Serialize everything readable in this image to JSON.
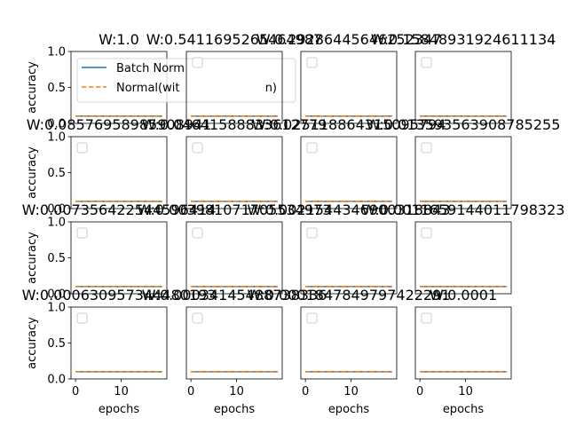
{
  "chart_data": {
    "type": "line",
    "grid": false,
    "ylim": [
      0,
      1.0
    ],
    "xlim": [
      -1,
      20
    ],
    "xticks": [
      0,
      10
    ],
    "yticks": [
      0.0,
      0.5,
      1.0
    ],
    "xticks_shown": [
      "0",
      "10"
    ],
    "yticks_shown": [
      "0.0",
      "0.5",
      "1.0"
    ],
    "xlabel": "epochs",
    "ylabel": "accuracy",
    "legend_location": "upper-left",
    "series_styles": [
      {
        "name": "Batch Normalization",
        "color": "#1f77b4",
        "dash": "solid"
      },
      {
        "name": "Normal(without BatchNorm)",
        "color": "#ff7f0e",
        "dash": "dashed"
      }
    ],
    "legend_labels_visible": [
      "Batch Norm",
      "Normal(wit",
      "n)"
    ],
    "panels": [
      {
        "title": "W:1.0",
        "legend": true,
        "x": [
          0,
          19
        ],
        "series": [
          {
            "name": "Batch Normalization",
            "values": [
              0.1,
              0.1
            ]
          },
          {
            "name": "Normal(without BatchNorm)",
            "values": [
              0.1,
              0.1
            ]
          }
        ]
      },
      {
        "title": "W:0.5411695265464987",
        "legend": false,
        "x": [
          0,
          19
        ],
        "series": [
          {
            "name": "Batch Normalization",
            "values": [
              0.1,
              0.1
            ]
          },
          {
            "name": "Normal(without BatchNorm)",
            "values": [
              0.1,
              0.1
            ]
          }
        ]
      },
      {
        "title": "W:0.29286445646252347",
        "legend": false,
        "x": [
          0,
          19
        ],
        "series": [
          {
            "name": "Batch Normalization",
            "values": [
              0.1,
              0.1
            ]
          },
          {
            "name": "Normal(without BatchNorm)",
            "values": [
              0.1,
              0.1
            ]
          }
        ]
      },
      {
        "title": "W:0.15848931924611134",
        "legend": false,
        "x": [
          0,
          19
        ],
        "series": [
          {
            "name": "Batch Normalization",
            "values": [
              0.1,
              0.1
            ]
          },
          {
            "name": "Normal(without BatchNorm)",
            "values": [
              0.1,
              0.1
            ]
          }
        ]
      },
      {
        "title": "W:0.08576958985908941",
        "legend": false,
        "x": [
          0,
          19
        ],
        "series": [
          {
            "name": "Batch Normalization",
            "values": [
              0.1,
              0.1
            ]
          },
          {
            "name": "Normal(without BatchNorm)",
            "values": [
              0.1,
              0.1
            ]
          }
        ]
      },
      {
        "title": "W:0.04641588833612779",
        "legend": false,
        "x": [
          0,
          19
        ],
        "series": [
          {
            "name": "Batch Normalization",
            "values": [
              0.1,
              0.1
            ]
          },
          {
            "name": "Normal(without BatchNorm)",
            "values": [
              0.1,
              0.1
            ]
          }
        ]
      },
      {
        "title": "W:0.025118864315095794",
        "legend": false,
        "x": [
          0,
          19
        ],
        "series": [
          {
            "name": "Batch Normalization",
            "values": [
              0.1,
              0.1
            ]
          },
          {
            "name": "Normal(without BatchNorm)",
            "values": [
              0.1,
              0.1
            ]
          }
        ]
      },
      {
        "title": "W:0.013593563908785255",
        "legend": false,
        "x": [
          0,
          19
        ],
        "series": [
          {
            "name": "Batch Normalization",
            "values": [
              0.1,
              0.1
            ]
          },
          {
            "name": "Normal(without BatchNorm)",
            "values": [
              0.1,
              0.1
            ]
          }
        ]
      },
      {
        "title": "W:0.007356422544596414",
        "legend": false,
        "x": [
          0,
          19
        ],
        "series": [
          {
            "name": "Batch Normalization",
            "values": [
              0.1,
              0.1
            ]
          },
          {
            "name": "Normal(without BatchNorm)",
            "values": [
              0.1,
              0.1
            ]
          }
        ]
      },
      {
        "title": "W:0.003981071705534973",
        "legend": false,
        "x": [
          0,
          19
        ],
        "series": [
          {
            "name": "Batch Normalization",
            "values": [
              0.1,
              0.1
            ]
          },
          {
            "name": "Normal(without BatchNorm)",
            "values": [
              0.1,
              0.1
            ]
          }
        ]
      },
      {
        "title": "W:0.0021544346900318843",
        "legend": false,
        "x": [
          0,
          19
        ],
        "series": [
          {
            "name": "Batch Normalization",
            "values": [
              0.1,
              0.1
            ]
          },
          {
            "name": "Normal(without BatchNorm)",
            "values": [
              0.1,
              0.1
            ]
          }
        ]
      },
      {
        "title": "W:0.0011659144011798323",
        "legend": false,
        "x": [
          0,
          19
        ],
        "series": [
          {
            "name": "Batch Normalization",
            "values": [
              0.1,
              0.1
            ]
          },
          {
            "name": "Normal(without BatchNorm)",
            "values": [
              0.1,
              0.1
            ]
          }
        ]
      },
      {
        "title": "W:0.000630957344480193",
        "legend": false,
        "x": [
          0,
          19
        ],
        "series": [
          {
            "name": "Batch Normalization",
            "values": [
              0.1,
              0.1
            ]
          },
          {
            "name": "Normal(without BatchNorm)",
            "values": [
              0.1,
              0.1
            ]
          }
        ]
      },
      {
        "title": "W:0.00034145488738336",
        "legend": false,
        "x": [
          0,
          19
        ],
        "series": [
          {
            "name": "Batch Normalization",
            "values": [
              0.1,
              0.1
            ]
          },
          {
            "name": "Normal(without BatchNorm)",
            "values": [
              0.1,
              0.1
            ]
          }
        ]
      },
      {
        "title": "W:0.0001847849797422291",
        "legend": false,
        "x": [
          0,
          19
        ],
        "series": [
          {
            "name": "Batch Normalization",
            "values": [
              0.1,
              0.1
            ]
          },
          {
            "name": "Normal(without BatchNorm)",
            "values": [
              0.1,
              0.1
            ]
          }
        ]
      },
      {
        "title": "W:0.0001",
        "legend": false,
        "x": [
          0,
          19
        ],
        "series": [
          {
            "name": "Batch Normalization",
            "values": [
              0.1,
              0.1
            ]
          },
          {
            "name": "Normal(without BatchNorm)",
            "values": [
              0.1,
              0.1
            ]
          }
        ]
      }
    ]
  }
}
